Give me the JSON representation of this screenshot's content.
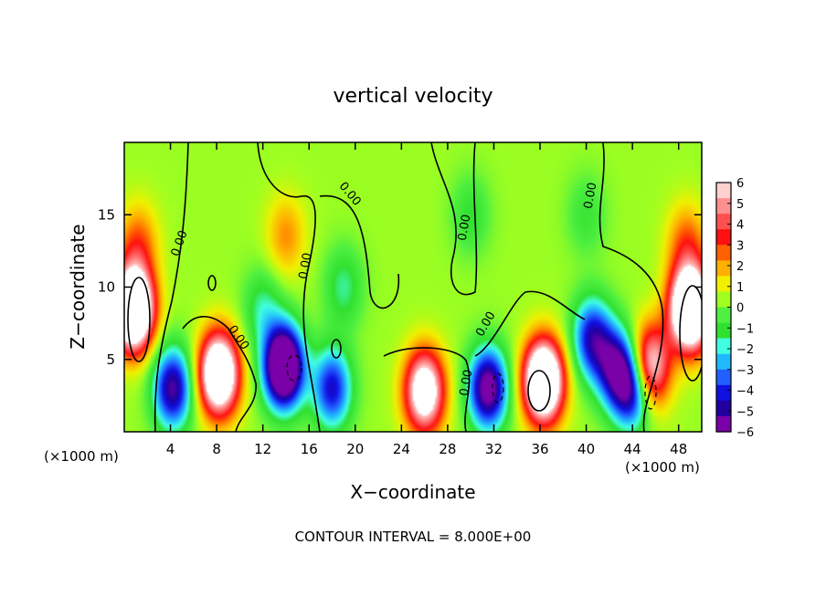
{
  "chart_data": {
    "type": "heatmap",
    "title": "vertical velocity",
    "xlabel": "X−coordinate",
    "ylabel": "Z−coordinate",
    "x_unit_left": "(×1000 m)",
    "x_unit_right": "(×1000 m)",
    "footer": "CONTOUR INTERVAL = 8.000E+00",
    "xlim": [
      0,
      50
    ],
    "ylim": [
      0,
      20
    ],
    "x_ticks": [
      4,
      8,
      12,
      16,
      20,
      24,
      28,
      32,
      36,
      40,
      44,
      48
    ],
    "y_ticks": [
      5,
      10,
      15
    ],
    "colorbar": {
      "min": -6,
      "max": 6,
      "tick_labels": [
        "6",
        "5",
        "4",
        "3",
        "2",
        "1",
        "0",
        "−1",
        "−2",
        "−3",
        "−4",
        "−5",
        "−6"
      ],
      "tick_values": [
        6,
        5,
        4,
        3,
        2,
        1,
        0,
        -1,
        -2,
        -3,
        -4,
        -5,
        -6
      ],
      "colors": [
        "#7a00a8",
        "#2200a0",
        "#1010e0",
        "#2060ff",
        "#20b8ff",
        "#40ffe0",
        "#30e030",
        "#50f040",
        "#a0ff20",
        "#f0f000",
        "#ffb000",
        "#ff6000",
        "#ff1010",
        "#ff5050",
        "#ff9090",
        "#ffd0d0"
      ]
    },
    "contour_labels": [
      "0.00",
      "0.00",
      "0.00",
      "0.00",
      "0.00",
      "0.00",
      "0.00",
      "0.00"
    ],
    "features": [
      {
        "x": 0.8,
        "z": 8.5,
        "w": 12
      },
      {
        "x": 1.2,
        "z": 13.0,
        "w": 2.5
      },
      {
        "x": 4.2,
        "z": 3.0,
        "w": -6
      },
      {
        "x": 8.2,
        "z": 4.0,
        "w": 10
      },
      {
        "x": 13.8,
        "z": 4.5,
        "w": -10
      },
      {
        "x": 12.0,
        "z": 8.5,
        "w": -2
      },
      {
        "x": 14.0,
        "z": 13.5,
        "w": 2
      },
      {
        "x": 18.0,
        "z": 3.0,
        "w": -5
      },
      {
        "x": 19.0,
        "z": 10.0,
        "w": -2
      },
      {
        "x": 26.0,
        "z": 2.8,
        "w": 8
      },
      {
        "x": 31.5,
        "z": 3.0,
        "w": -7
      },
      {
        "x": 36.3,
        "z": 3.5,
        "w": 11
      },
      {
        "x": 40.5,
        "z": 6.5,
        "w": -5
      },
      {
        "x": 42.5,
        "z": 4.5,
        "w": -5
      },
      {
        "x": 44.0,
        "z": 3.0,
        "w": -6
      },
      {
        "x": 45.5,
        "z": 4.5,
        "w": 7
      },
      {
        "x": 49.0,
        "z": 8.5,
        "w": 12
      },
      {
        "x": 48.7,
        "z": 13.0,
        "w": 2.5
      },
      {
        "x": 30.0,
        "z": 15.0,
        "w": -1.5
      },
      {
        "x": 40.0,
        "z": 15.0,
        "w": -1.3
      }
    ]
  }
}
